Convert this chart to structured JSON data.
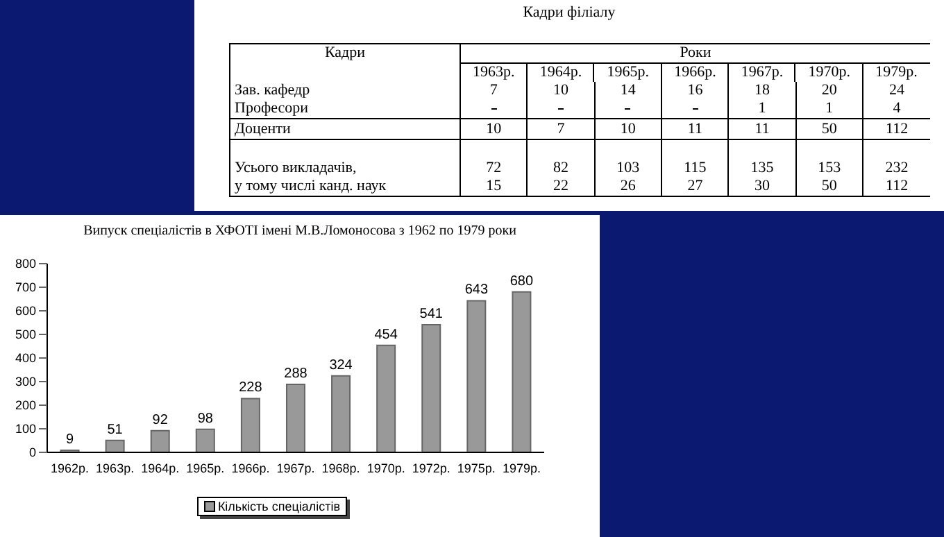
{
  "chart_data": [
    {
      "type": "heatmap",
      "title": "Кадри філіалу",
      "xlabel": "Роки",
      "ylabel": "Кадри",
      "data_labels": true,
      "categories": [
        "1963р.",
        "1964р.",
        "1965р.",
        "1966р.",
        "1967р.",
        "1970р.",
        "1979р."
      ],
      "y_categories": [
        "Зав. кафедр",
        "Професори",
        "Доценти",
        "Усього викладачів,",
        "у тому числі канд. наук"
      ],
      "cells": [
        [
          7,
          10,
          14,
          16,
          18,
          20,
          24
        ],
        [
          null,
          null,
          null,
          null,
          1,
          1,
          4
        ],
        [
          10,
          7,
          10,
          11,
          11,
          50,
          112
        ],
        [
          72,
          82,
          103,
          115,
          135,
          153,
          232
        ],
        [
          15,
          22,
          26,
          27,
          30,
          50,
          112
        ]
      ]
    },
    {
      "type": "bar",
      "title": "Випуск спеціалістів в ХФОТІ імені М.В.Ломоносова з 1962 по 1979 роки",
      "categories": [
        "1962р.",
        "1963р.",
        "1964р.",
        "1965р.",
        "1966р.",
        "1967р.",
        "1968р.",
        "1970р.",
        "1972р.",
        "1975р.",
        "1979р."
      ],
      "series": [
        {
          "name": "Кількість спеціалістів",
          "color": "#999999",
          "values": [
            9,
            51,
            92,
            98,
            228,
            288,
            324,
            454,
            541,
            643,
            680
          ]
        }
      ],
      "ylim": [
        0,
        800
      ],
      "yticks": [
        0,
        100,
        200,
        300,
        400,
        500,
        600,
        700,
        800
      ],
      "data_labels": true,
      "legend": "bottom"
    }
  ]
}
